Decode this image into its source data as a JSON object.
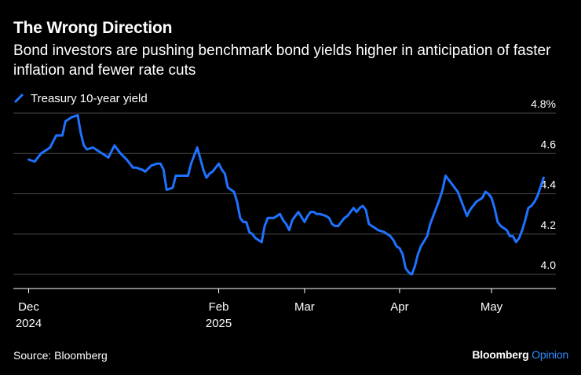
{
  "title": "The Wrong Direction",
  "subtitle": "Bond investors are pushing benchmark bond yields higher in anticipation of faster inflation and fewer rate cuts",
  "source": "Source: Bloomberg",
  "brand": {
    "name": "Bloomberg",
    "suffix": "Opinion",
    "name_color": "#ffffff",
    "suffix_color": "#2f8cff"
  },
  "colors": {
    "background": "#000000",
    "line": "#1f72ff",
    "grid": "#4d4d4d",
    "axis": "#ffffff",
    "text": "#ffffff"
  },
  "chart_data": {
    "type": "line",
    "title": "The Wrong Direction",
    "legend_position": "top-left",
    "grid": true,
    "y_axis_position": "right",
    "ylim": [
      3.93,
      4.8
    ],
    "yticks": [
      4.0,
      4.2,
      4.4,
      4.6,
      4.8
    ],
    "ytick_labels": [
      "4.0",
      "4.2",
      "4.4",
      "4.6",
      "4.8%"
    ],
    "xlim": [
      -5,
      172
    ],
    "xticks": [
      {
        "day": 0,
        "label": "Dec",
        "sublabel": "2024"
      },
      {
        "day": 62,
        "label": "Feb",
        "sublabel": "2025"
      },
      {
        "day": 90,
        "label": "Mar",
        "sublabel": ""
      },
      {
        "day": 121,
        "label": "Apr",
        "sublabel": ""
      },
      {
        "day": 151,
        "label": "May",
        "sublabel": ""
      }
    ],
    "series": [
      {
        "name": "Treasury 10-year yield",
        "x": [
          0,
          2,
          4,
          5,
          7,
          9,
          11,
          12,
          13,
          14,
          16,
          17,
          18,
          19,
          21,
          23,
          25,
          26,
          28,
          30,
          32,
          34,
          35,
          37,
          38,
          40,
          42,
          43,
          44,
          45,
          47,
          48,
          50,
          52,
          53,
          55,
          57,
          58,
          59,
          60,
          62,
          63,
          64,
          65,
          66,
          67,
          68,
          69,
          70,
          71,
          72,
          73,
          74,
          76,
          77,
          78,
          80,
          81,
          82,
          83,
          84,
          85,
          86,
          87,
          88,
          90,
          91,
          92,
          93,
          94,
          95,
          97,
          98,
          99,
          100,
          101,
          102,
          103,
          104,
          105,
          106,
          107,
          108,
          109,
          110,
          111,
          112,
          113,
          114,
          116,
          117,
          118,
          119,
          120,
          121,
          122,
          123,
          124,
          125,
          126,
          127,
          128,
          130,
          131,
          132,
          133,
          134,
          135,
          136,
          138,
          140,
          141,
          142,
          143,
          144,
          145,
          146,
          148,
          149,
          150,
          151,
          152,
          153,
          154,
          155,
          156,
          157,
          158,
          159,
          160,
          161,
          162,
          163,
          164,
          165,
          166,
          168
        ],
        "values": [
          4.57,
          4.56,
          4.6,
          4.61,
          4.63,
          4.69,
          4.69,
          4.76,
          4.77,
          4.78,
          4.79,
          4.7,
          4.64,
          4.62,
          4.63,
          4.61,
          4.59,
          4.58,
          4.64,
          4.6,
          4.57,
          4.53,
          4.53,
          4.52,
          4.51,
          4.54,
          4.55,
          4.55,
          4.52,
          4.42,
          4.43,
          4.49,
          4.49,
          4.49,
          4.55,
          4.63,
          4.52,
          4.48,
          4.5,
          4.51,
          4.55,
          4.52,
          4.5,
          4.43,
          4.42,
          4.41,
          4.36,
          4.28,
          4.26,
          4.26,
          4.21,
          4.2,
          4.18,
          4.16,
          4.24,
          4.28,
          4.28,
          4.29,
          4.3,
          4.27,
          4.25,
          4.22,
          4.27,
          4.29,
          4.31,
          4.26,
          4.29,
          4.31,
          4.31,
          4.3,
          4.3,
          4.29,
          4.28,
          4.25,
          4.24,
          4.24,
          4.26,
          4.28,
          4.29,
          4.31,
          4.33,
          4.31,
          4.33,
          4.34,
          4.32,
          4.25,
          4.24,
          4.23,
          4.22,
          4.21,
          4.2,
          4.19,
          4.17,
          4.14,
          4.13,
          4.1,
          4.03,
          4.01,
          4.0,
          4.04,
          4.1,
          4.14,
          4.19,
          4.25,
          4.29,
          4.33,
          4.37,
          4.42,
          4.49,
          4.45,
          4.41,
          4.37,
          4.33,
          4.29,
          4.32,
          4.34,
          4.36,
          4.38,
          4.41,
          4.4,
          4.38,
          4.33,
          4.26,
          4.24,
          4.23,
          4.22,
          4.19,
          4.19,
          4.16,
          4.18,
          4.22,
          4.27,
          4.33,
          4.34,
          4.36,
          4.39,
          4.48
        ]
      }
    ]
  }
}
